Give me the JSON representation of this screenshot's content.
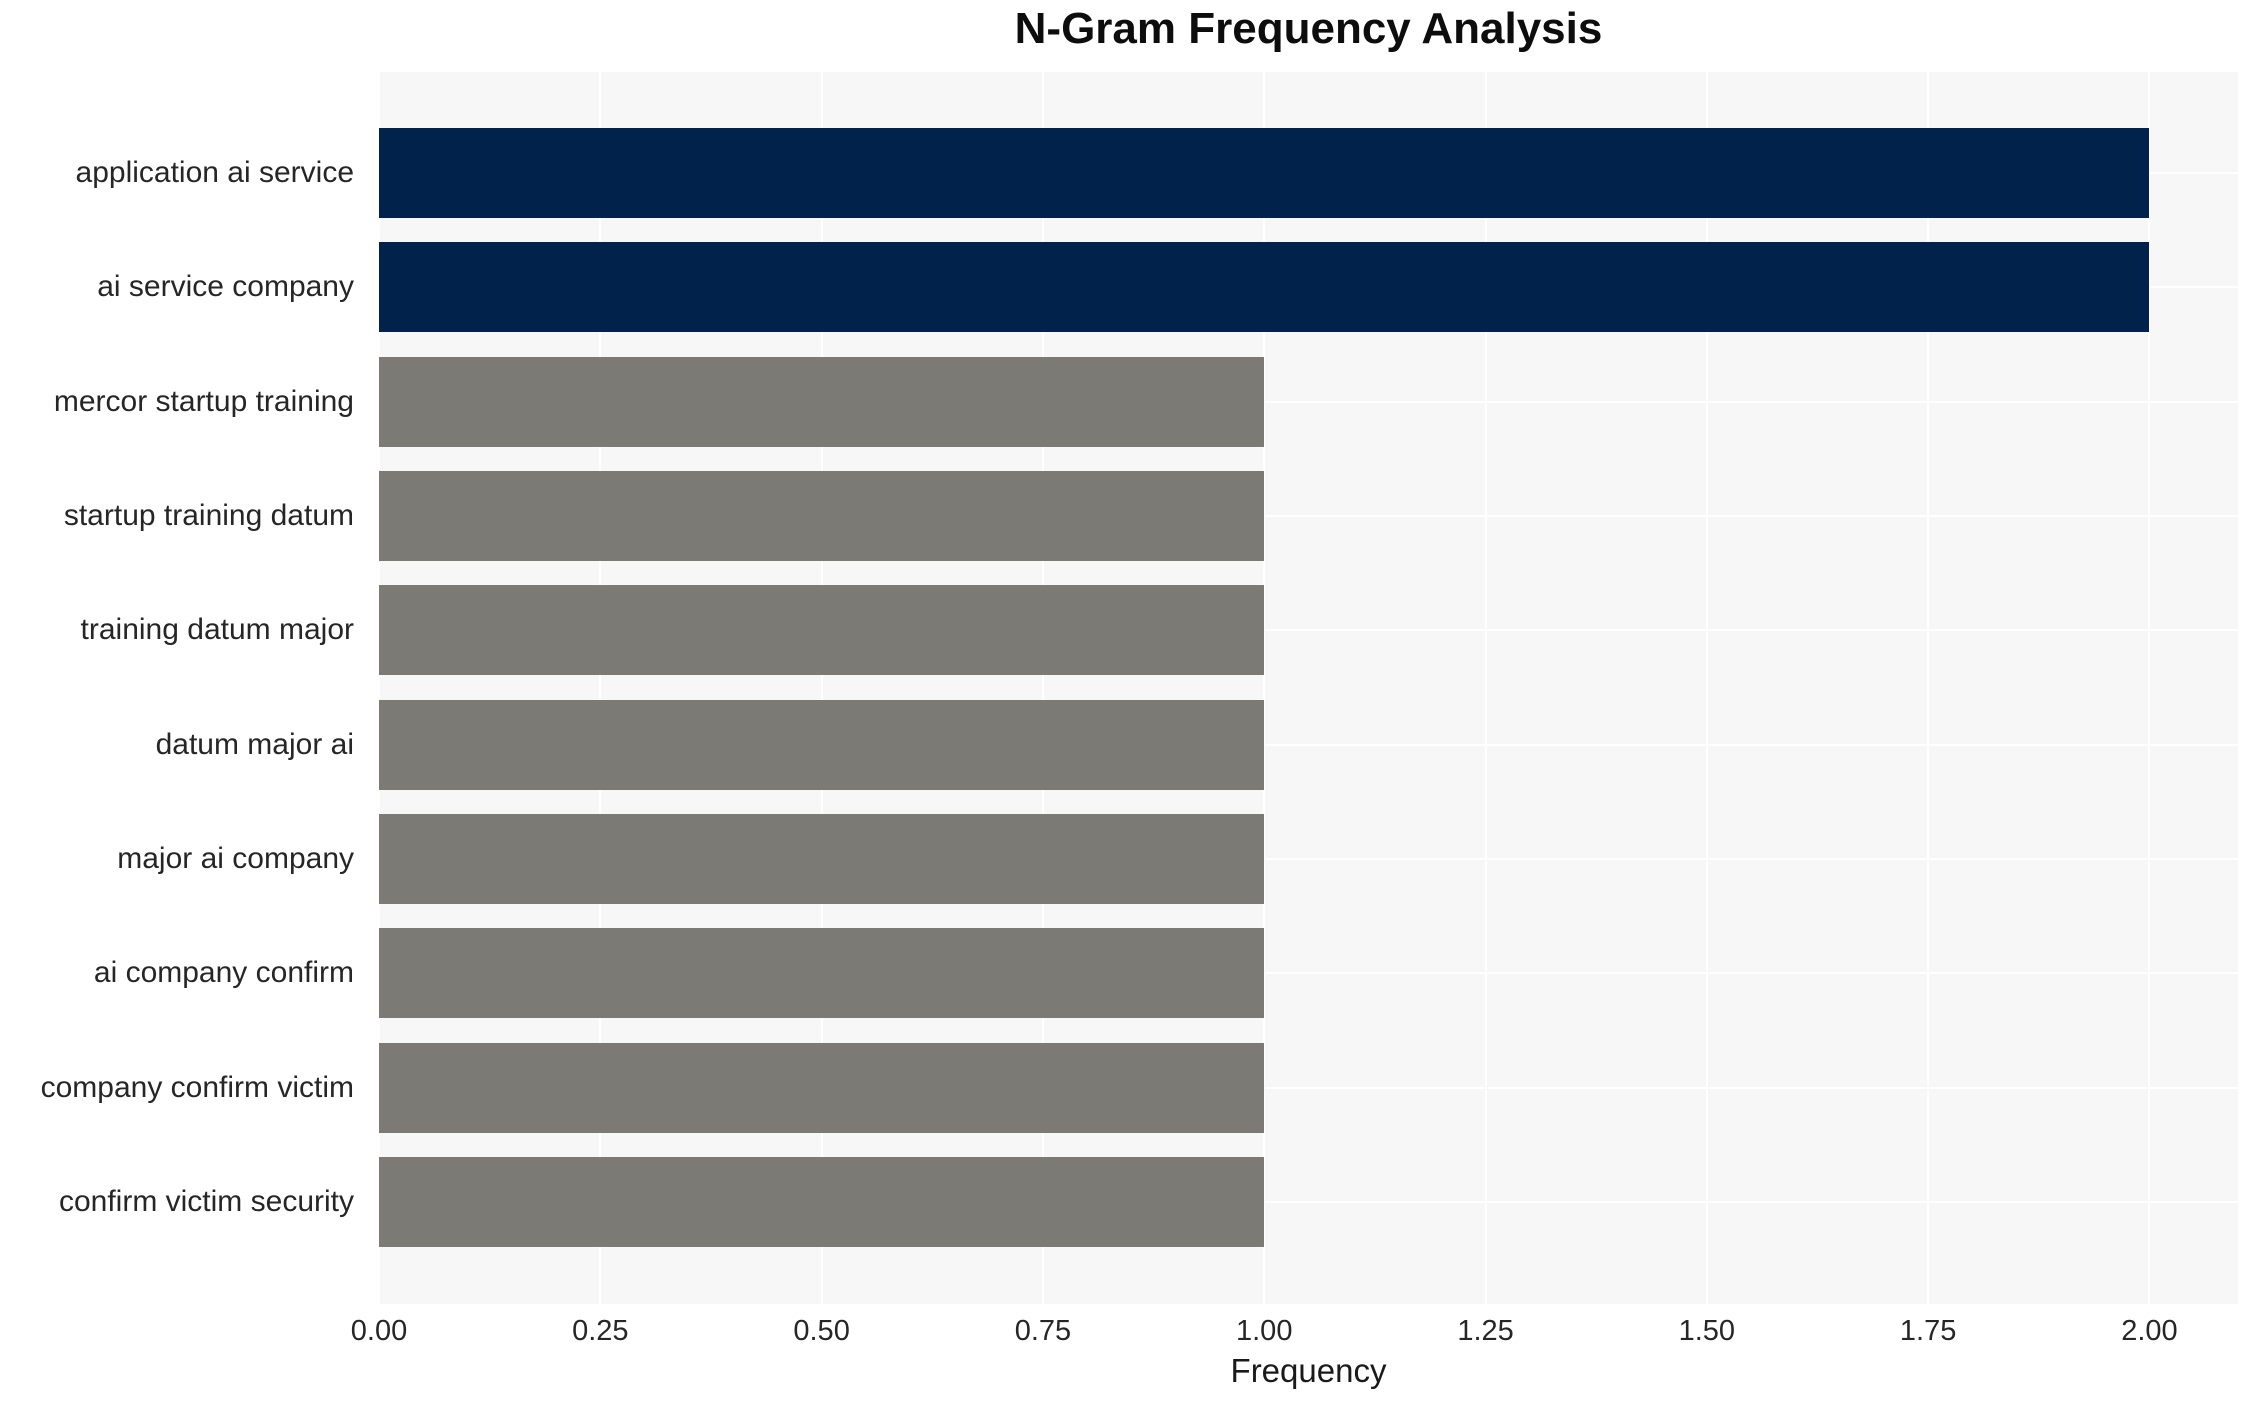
{
  "chart_data": {
    "type": "bar",
    "orientation": "horizontal",
    "title": "N-Gram Frequency Analysis",
    "xlabel": "Frequency",
    "ylabel": "",
    "categories": [
      "application ai service",
      "ai service company",
      "mercor startup training",
      "startup training datum",
      "training datum major",
      "datum major ai",
      "major ai company",
      "ai company confirm",
      "company confirm victim",
      "confirm victim security"
    ],
    "values": [
      2.0,
      2.0,
      1.0,
      1.0,
      1.0,
      1.0,
      1.0,
      1.0,
      1.0,
      1.0
    ],
    "bar_colors": [
      "#01224A",
      "#01224A",
      "#7B7A74",
      "#7B7A74",
      "#7B7A74",
      "#7B7A74",
      "#7B7A74",
      "#7B7A74",
      "#7B7A74",
      "#7B7A74"
    ],
    "xlim": [
      0,
      2.1
    ],
    "xticks": [
      "0.00",
      "0.25",
      "0.50",
      "0.75",
      "1.00",
      "1.25",
      "1.50",
      "1.75",
      "2.00"
    ],
    "xtick_values": [
      0,
      0.25,
      0.5,
      0.75,
      1.0,
      1.25,
      1.5,
      1.75,
      2.0
    ],
    "grid": true,
    "grid_color": "#FFFFFF",
    "plot_bg": "#F8F7F7",
    "legend_position": "none"
  }
}
